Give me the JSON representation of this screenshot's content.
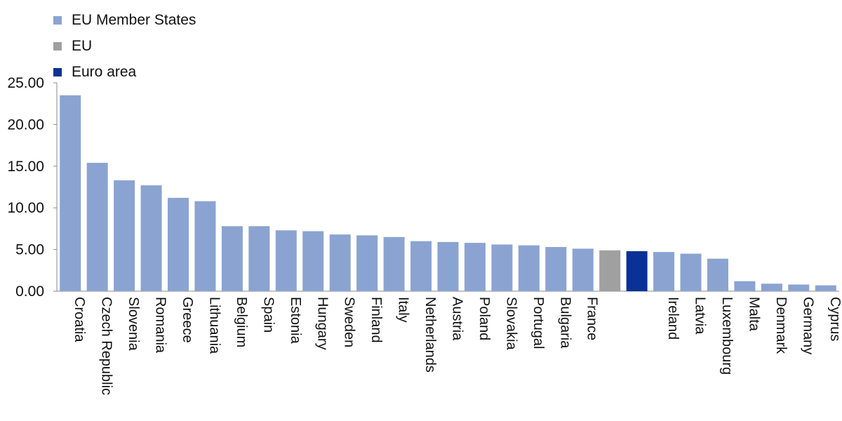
{
  "chart_data": {
    "type": "bar",
    "title": "",
    "xlabel": "",
    "ylabel": "",
    "ylim": [
      0,
      25
    ],
    "yticks": [
      "0.00",
      "5.00",
      "10.00",
      "15.00",
      "20.00",
      "25.00"
    ],
    "grid": false,
    "legend_position": "top-left",
    "legend": [
      {
        "label": "EU Member States",
        "color": "#8ba3d1"
      },
      {
        "label": "EU",
        "color": "#a0a0a0"
      },
      {
        "label": "Euro area",
        "color": "#0a3296"
      }
    ],
    "bars": [
      {
        "category": "Croatia",
        "value": 23.5,
        "group": 0
      },
      {
        "category": "Czech Republic",
        "value": 15.4,
        "group": 0
      },
      {
        "category": "Slovenia",
        "value": 13.3,
        "group": 0
      },
      {
        "category": "Romania",
        "value": 12.7,
        "group": 0
      },
      {
        "category": "Greece",
        "value": 11.2,
        "group": 0
      },
      {
        "category": "Lithuania",
        "value": 10.8,
        "group": 0
      },
      {
        "category": "Belgium",
        "value": 7.8,
        "group": 0
      },
      {
        "category": "Spain",
        "value": 7.8,
        "group": 0
      },
      {
        "category": "Estonia",
        "value": 7.3,
        "group": 0
      },
      {
        "category": "Hungary",
        "value": 7.2,
        "group": 0
      },
      {
        "category": "Sweden",
        "value": 6.8,
        "group": 0
      },
      {
        "category": "Finland",
        "value": 6.7,
        "group": 0
      },
      {
        "category": "Italy",
        "value": 6.5,
        "group": 0
      },
      {
        "category": "Netherlands",
        "value": 6.0,
        "group": 0
      },
      {
        "category": "Austria",
        "value": 5.9,
        "group": 0
      },
      {
        "category": "Poland",
        "value": 5.8,
        "group": 0
      },
      {
        "category": "Slovakia",
        "value": 5.6,
        "group": 0
      },
      {
        "category": "Portugal",
        "value": 5.5,
        "group": 0
      },
      {
        "category": "Bulgaria",
        "value": 5.3,
        "group": 0
      },
      {
        "category": "France",
        "value": 5.1,
        "group": 0
      },
      {
        "category": "",
        "value": 4.9,
        "group": 1
      },
      {
        "category": "",
        "value": 4.8,
        "group": 2
      },
      {
        "category": "Ireland",
        "value": 4.7,
        "group": 0
      },
      {
        "category": "Latvia",
        "value": 4.5,
        "group": 0
      },
      {
        "category": "Luxembourg",
        "value": 3.9,
        "group": 0
      },
      {
        "category": "Malta",
        "value": 1.2,
        "group": 0
      },
      {
        "category": "Denmark",
        "value": 0.9,
        "group": 0
      },
      {
        "category": "Germany",
        "value": 0.8,
        "group": 0
      },
      {
        "category": "Cyprus",
        "value": 0.7,
        "group": 0
      }
    ]
  }
}
